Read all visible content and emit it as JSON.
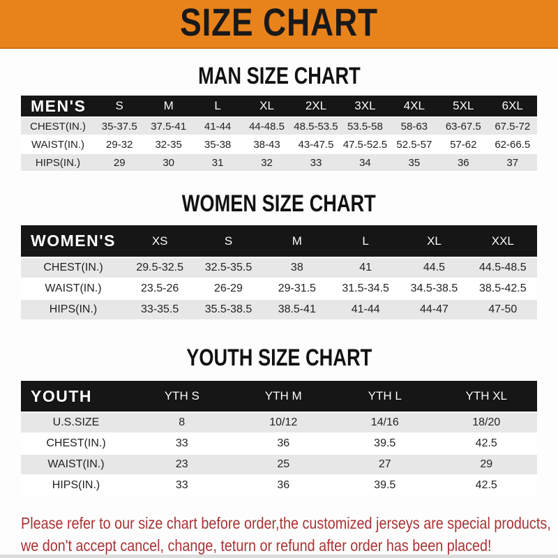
{
  "banner": {
    "title": "SIZE CHART"
  },
  "colors": {
    "banner_orange": "#E8821B",
    "header_black": "#161616",
    "row_gray": "#E7E7E7",
    "note_red": "#A93335"
  },
  "sections": [
    {
      "heading": "MAN SIZE CHART",
      "header": [
        "MEN'S",
        "S",
        "M",
        "L",
        "XL",
        "2XL",
        "3XL",
        "4XL",
        "5XL",
        "6XL"
      ],
      "rows": [
        [
          "CHEST(IN.)",
          "35-37.5",
          "37.5-41",
          "41-44",
          "44-48.5",
          "48.5-53.5",
          "53.5-58",
          "58-63",
          "63-67.5",
          "67.5-72"
        ],
        [
          "WAIST(IN.)",
          "29-32",
          "32-35",
          "35-38",
          "38-43",
          "43-47.5",
          "47.5-52.5",
          "52.5-57",
          "57-62",
          "62-66.5"
        ],
        [
          "HIPS(IN.)",
          "29",
          "30",
          "31",
          "32",
          "33",
          "34",
          "35",
          "36",
          "37"
        ]
      ]
    },
    {
      "heading": "WOMEN SIZE CHART",
      "header": [
        "WOMEN'S",
        "XS",
        "S",
        "M",
        "L",
        "XL",
        "XXL"
      ],
      "rows": [
        [
          "CHEST(IN.)",
          "29.5-32.5",
          "32.5-35.5",
          "38",
          "41",
          "44.5",
          "44.5-48.5"
        ],
        [
          "WAIST(IN.)",
          "23.5-26",
          "26-29",
          "29-31.5",
          "31.5-34.5",
          "34.5-38.5",
          "38.5-42.5"
        ],
        [
          "HIPS(IN.)",
          "33-35.5",
          "35.5-38.5",
          "38.5-41",
          "41-44",
          "44-47",
          "47-50"
        ]
      ]
    },
    {
      "heading": "YOUTH SIZE CHART",
      "header": [
        "YOUTH",
        "YTH S",
        "YTH M",
        "YTH L",
        "YTH XL"
      ],
      "rows": [
        [
          "U.S.SIZE",
          "8",
          "10/12",
          "14/16",
          "18/20"
        ],
        [
          "CHEST(IN.)",
          "33",
          "36",
          "39.5",
          "42.5"
        ],
        [
          "WAIST(IN.)",
          "23",
          "25",
          "27",
          "29"
        ],
        [
          "HIPS(IN.)",
          "33",
          "36",
          "39.5",
          "42.5"
        ]
      ]
    }
  ],
  "footer": {
    "line1": "Please refer to our size chart before order,the customized jerseys are special products,",
    "line2": "we don't accept cancel, change, teturn or refund after order has been placed!"
  }
}
